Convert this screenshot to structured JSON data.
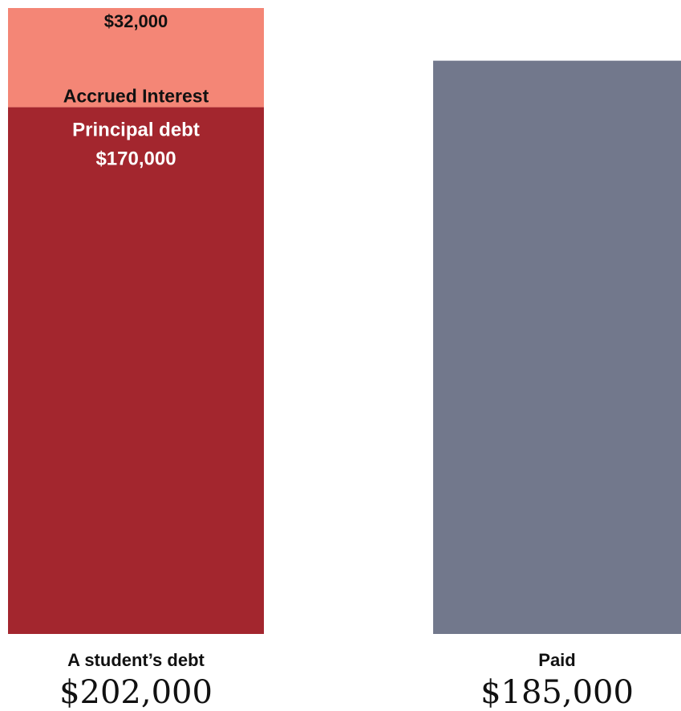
{
  "chart_data": {
    "type": "bar",
    "stacked": true,
    "categories": [
      "A student’s debt",
      "Paid"
    ],
    "totals": [
      "$202,000",
      "$185,000"
    ],
    "total_values": [
      202000,
      185000
    ],
    "segments": [
      {
        "category": "A student’s debt",
        "name": "Principal debt",
        "value": 170000,
        "value_label": "$170,000",
        "color": "#a3262e"
      },
      {
        "category": "A student’s debt",
        "name": "Accrued Interest",
        "value": 32000,
        "value_label": "$32,000",
        "color": "#f48676"
      },
      {
        "category": "Paid",
        "name": "",
        "value": 185000,
        "value_label": "",
        "color": "#72788c"
      }
    ],
    "ylim": [
      0,
      202000
    ],
    "grid": false,
    "text_color_dark": "#111111",
    "text_color_light": "#ffffff"
  }
}
